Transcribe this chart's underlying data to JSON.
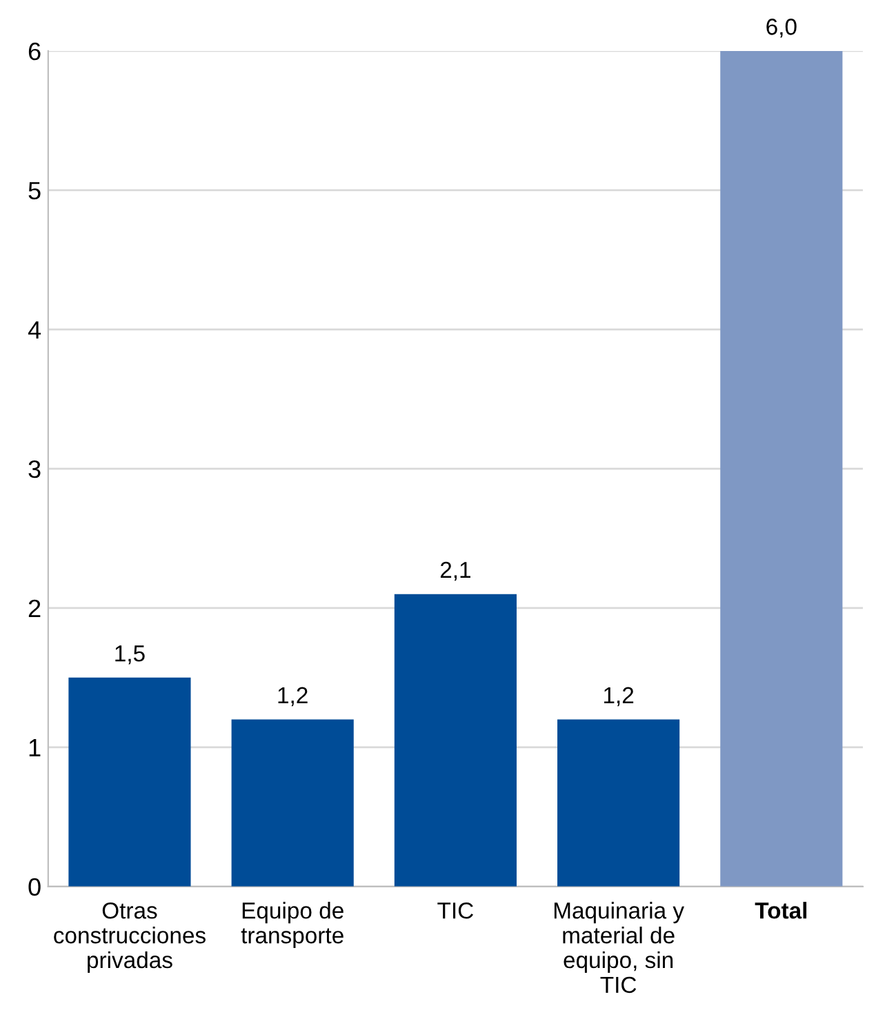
{
  "chart_data": {
    "type": "bar",
    "categories": [
      "Otras construcciones privadas",
      "Equipo de transporte",
      "TIC",
      "Maquinaria y material de equipo, sin TIC",
      "Total"
    ],
    "values": [
      1.5,
      1.2,
      2.1,
      1.2,
      6.0
    ],
    "colors": [
      "#004c97",
      "#004c97",
      "#004c97",
      "#004c97",
      "#7f98c4"
    ],
    "value_labels": [
      "1,5",
      "1,2",
      "2,1",
      "1,2",
      "6,0"
    ],
    "ylim": [
      0,
      6
    ],
    "yticks": [
      0,
      1,
      2,
      3,
      4,
      5,
      6
    ],
    "grid": "y"
  }
}
